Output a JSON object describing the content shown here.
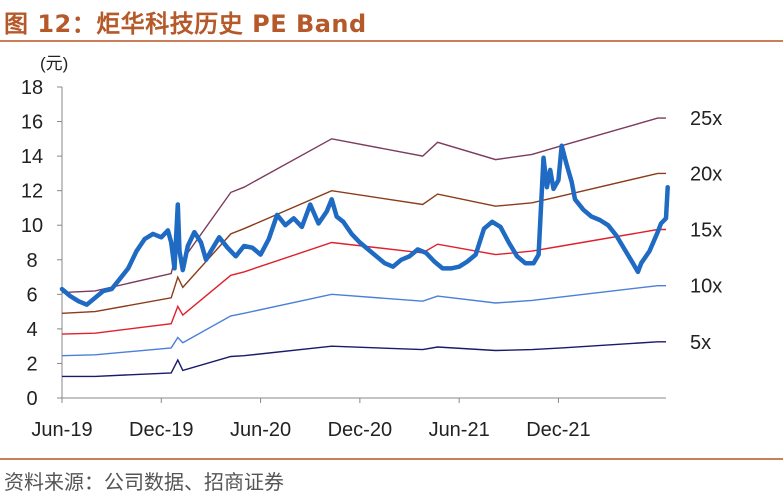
{
  "header": {
    "title": "图 12：炬华科技历史 PE Band"
  },
  "footer": {
    "source": "资料来源：公司数据、招商证券"
  },
  "chart_data": {
    "type": "line",
    "title": "",
    "xlabel": "",
    "ylabel": "",
    "y_unit": "(元)",
    "ylim": [
      0,
      18
    ],
    "y_ticks": [
      0,
      2,
      4,
      6,
      8,
      10,
      12,
      14,
      16,
      18
    ],
    "x_tick_labels": [
      "Jun-19",
      "Dec-19",
      "Jun-20",
      "Dec-20",
      "Jun-21",
      "Dec-21"
    ],
    "x_tick_months": [
      0,
      6,
      12,
      18,
      24,
      30
    ],
    "xlim_months": [
      0,
      36.5
    ],
    "grid": false,
    "legend": "right-end-labels",
    "bands": [
      {
        "label": "25x",
        "color": "#7b3b5e",
        "points": [
          [
            0,
            6.1
          ],
          [
            2,
            6.2
          ],
          [
            6.6,
            7.2
          ],
          [
            7,
            8.8
          ],
          [
            7.3,
            8.0
          ],
          [
            10.2,
            11.9
          ],
          [
            11,
            12.2
          ],
          [
            16.3,
            15.0
          ],
          [
            21.8,
            14.0
          ],
          [
            22.7,
            14.8
          ],
          [
            26.2,
            13.8
          ],
          [
            28.4,
            14.1
          ],
          [
            30.2,
            14.6
          ],
          [
            36,
            16.2
          ],
          [
            36.5,
            16.2
          ]
        ]
      },
      {
        "label": "20x",
        "color": "#8b3c1a",
        "points": [
          [
            0,
            4.9
          ],
          [
            2,
            5.0
          ],
          [
            6.6,
            5.8
          ],
          [
            7,
            7.0
          ],
          [
            7.3,
            6.4
          ],
          [
            10.2,
            9.5
          ],
          [
            11,
            9.8
          ],
          [
            16.3,
            12.0
          ],
          [
            21.8,
            11.2
          ],
          [
            22.7,
            11.8
          ],
          [
            26.2,
            11.1
          ],
          [
            28.4,
            11.3
          ],
          [
            30.2,
            11.7
          ],
          [
            36,
            13.0
          ],
          [
            36.5,
            13.0
          ]
        ]
      },
      {
        "label": "15x",
        "color": "#e0202a",
        "points": [
          [
            0,
            3.7
          ],
          [
            2,
            3.75
          ],
          [
            6.6,
            4.3
          ],
          [
            7,
            5.3
          ],
          [
            7.3,
            4.8
          ],
          [
            10.2,
            7.1
          ],
          [
            11,
            7.3
          ],
          [
            16.3,
            9.0
          ],
          [
            21.8,
            8.4
          ],
          [
            22.7,
            8.9
          ],
          [
            26.2,
            8.3
          ],
          [
            28.4,
            8.5
          ],
          [
            30.2,
            8.8
          ],
          [
            36,
            9.75
          ],
          [
            36.5,
            9.75
          ]
        ]
      },
      {
        "label": "10x",
        "color": "#4a80d8",
        "points": [
          [
            0,
            2.45
          ],
          [
            2,
            2.5
          ],
          [
            6.6,
            2.9
          ],
          [
            7,
            3.5
          ],
          [
            7.3,
            3.2
          ],
          [
            10.2,
            4.75
          ],
          [
            11,
            4.9
          ],
          [
            16.3,
            6.0
          ],
          [
            21.8,
            5.6
          ],
          [
            22.7,
            5.9
          ],
          [
            26.2,
            5.5
          ],
          [
            28.4,
            5.65
          ],
          [
            30.2,
            5.85
          ],
          [
            36,
            6.5
          ],
          [
            36.5,
            6.5
          ]
        ]
      },
      {
        "label": "5x",
        "color": "#1a1a6b",
        "points": [
          [
            0,
            1.25
          ],
          [
            2,
            1.25
          ],
          [
            6.6,
            1.45
          ],
          [
            7,
            2.2
          ],
          [
            7.3,
            1.6
          ],
          [
            10.2,
            2.4
          ],
          [
            11,
            2.45
          ],
          [
            16.3,
            3.0
          ],
          [
            21.8,
            2.8
          ],
          [
            22.7,
            2.95
          ],
          [
            26.2,
            2.75
          ],
          [
            28.4,
            2.8
          ],
          [
            30.2,
            2.9
          ],
          [
            36,
            3.25
          ],
          [
            36.5,
            3.25
          ]
        ]
      }
    ],
    "series": [
      {
        "type": "price",
        "color": "#1f6ac2",
        "points": [
          [
            0,
            6.3
          ],
          [
            0.5,
            5.9
          ],
          [
            1,
            5.6
          ],
          [
            1.5,
            5.4
          ],
          [
            2,
            5.8
          ],
          [
            2.5,
            6.2
          ],
          [
            3,
            6.3
          ],
          [
            3.5,
            6.9
          ],
          [
            4,
            7.5
          ],
          [
            4.5,
            8.5
          ],
          [
            5,
            9.2
          ],
          [
            5.5,
            9.5
          ],
          [
            6,
            9.3
          ],
          [
            6.4,
            9.7
          ],
          [
            6.6,
            9.0
          ],
          [
            6.8,
            7.5
          ],
          [
            7,
            11.2
          ],
          [
            7.1,
            8.5
          ],
          [
            7.3,
            7.4
          ],
          [
            7.6,
            8.8
          ],
          [
            8,
            9.6
          ],
          [
            8.4,
            9.0
          ],
          [
            8.7,
            8.0
          ],
          [
            9,
            8.5
          ],
          [
            9.5,
            9.3
          ],
          [
            10,
            8.7
          ],
          [
            10.5,
            8.2
          ],
          [
            11,
            8.8
          ],
          [
            11.5,
            8.7
          ],
          [
            12,
            8.3
          ],
          [
            12.5,
            9.2
          ],
          [
            13,
            10.6
          ],
          [
            13.5,
            10.0
          ],
          [
            14,
            10.4
          ],
          [
            14.5,
            9.9
          ],
          [
            15,
            11.2
          ],
          [
            15.5,
            10.1
          ],
          [
            16,
            10.8
          ],
          [
            16.3,
            11.5
          ],
          [
            16.6,
            10.5
          ],
          [
            17,
            10.2
          ],
          [
            17.5,
            9.5
          ],
          [
            18,
            9.0
          ],
          [
            18.5,
            8.6
          ],
          [
            19,
            8.2
          ],
          [
            19.5,
            7.8
          ],
          [
            20,
            7.6
          ],
          [
            20.5,
            8.0
          ],
          [
            21,
            8.2
          ],
          [
            21.5,
            8.6
          ],
          [
            22,
            8.4
          ],
          [
            22.5,
            7.9
          ],
          [
            23,
            7.5
          ],
          [
            23.5,
            7.5
          ],
          [
            24,
            7.6
          ],
          [
            24.5,
            7.9
          ],
          [
            25,
            8.3
          ],
          [
            25.5,
            9.8
          ],
          [
            26,
            10.2
          ],
          [
            26.5,
            9.9
          ],
          [
            27,
            9.0
          ],
          [
            27.5,
            8.2
          ],
          [
            28,
            7.8
          ],
          [
            28.5,
            7.8
          ],
          [
            28.8,
            8.3
          ],
          [
            29.1,
            13.9
          ],
          [
            29.3,
            12.2
          ],
          [
            29.5,
            13.2
          ],
          [
            29.7,
            12.1
          ],
          [
            30,
            12.6
          ],
          [
            30.2,
            14.6
          ],
          [
            30.5,
            13.5
          ],
          [
            30.8,
            12.5
          ],
          [
            31,
            11.5
          ],
          [
            31.5,
            10.9
          ],
          [
            32,
            10.5
          ],
          [
            32.5,
            10.3
          ],
          [
            33,
            10.0
          ],
          [
            33.5,
            9.4
          ],
          [
            34,
            8.6
          ],
          [
            34.5,
            7.8
          ],
          [
            34.8,
            7.3
          ],
          [
            35,
            7.8
          ],
          [
            35.5,
            8.5
          ],
          [
            36,
            9.6
          ],
          [
            36.2,
            10.1
          ],
          [
            36.5,
            10.4
          ],
          [
            36.6,
            12.2
          ]
        ]
      }
    ]
  }
}
